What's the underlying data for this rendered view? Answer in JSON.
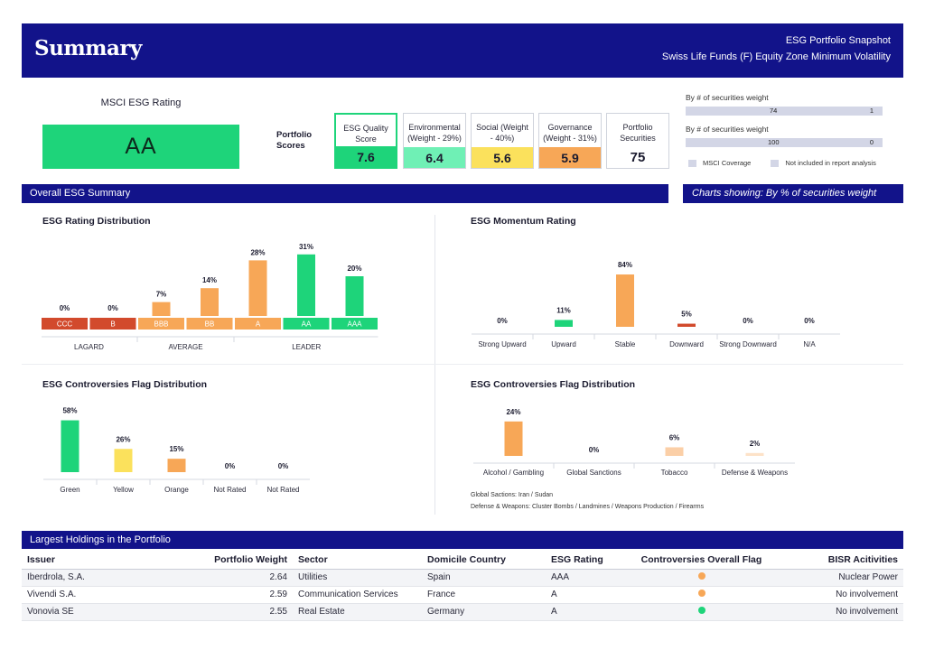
{
  "header": {
    "title": "Summary",
    "subtitle1": "ESG Portfolio Snapshot",
    "subtitle2": "Swiss Life Funds (F) Equity Zone Minimum Volatility"
  },
  "msci": {
    "label": "MSCI ESG Rating",
    "rating": "AA",
    "color": "#1ed47a"
  },
  "portfolio_scores": {
    "label_line1": "Portfolio",
    "label_line2": "Scores",
    "cards": [
      {
        "label_line1": "ESG Quality",
        "label_line2": "Score",
        "value": "7.6",
        "color": "#1ed47a"
      },
      {
        "label_line1": "Environmental",
        "label_line2": "(Weight - 29%)",
        "value": "6.4",
        "color": "#6ff0b5"
      },
      {
        "label_line1": "Social (Weight",
        "label_line2": "- 40%)",
        "value": "5.6",
        "color": "#fbe15c"
      },
      {
        "label_line1": "Governance",
        "label_line2": "(Weight - 31%)",
        "value": "5.9",
        "color": "#f7a757"
      },
      {
        "label_line1": "Portfolio",
        "label_line2": "Securities",
        "value": "75",
        "color": "#ffffff"
      }
    ]
  },
  "coverage": {
    "row1_label": "By # of securities weight",
    "row1_left": "74",
    "row1_right": "1",
    "row2_label": "By # of securities weight",
    "row2_left": "100",
    "row2_right": "0",
    "legend_covered": "MSCI Coverage",
    "legend_not_included": "Not included in report analysis"
  },
  "overall_section": {
    "title": "Overall ESG Summary",
    "charts_note": "Charts showing: By % of securities weight"
  },
  "chart_titles": {
    "rating_distribution": "ESG Rating Distribution",
    "momentum": "ESG Momentum Rating",
    "controversies_flag": "ESG Controversies Flag Distribution",
    "controversies_bisr": "ESG Controversies Flag Distribution"
  },
  "chart_data": [
    {
      "type": "bar",
      "title": "ESG Rating Distribution",
      "categories": [
        "CCC",
        "B",
        "BBB",
        "BB",
        "A",
        "AA",
        "AAA"
      ],
      "values": [
        0,
        0,
        7,
        14,
        28,
        31,
        20
      ],
      "labels": [
        "0%",
        "0%",
        "7%",
        "14%",
        "28%",
        "31%",
        "20%"
      ],
      "colors": [
        "#d24a2c",
        "#d24a2c",
        "#f7a757",
        "#f7a757",
        "#f7a757",
        "#1ed47a",
        "#1ed47a"
      ],
      "groups": [
        "LAGARD",
        "AVERAGE",
        "LEADER"
      ],
      "unit": "%"
    },
    {
      "type": "bar",
      "title": "ESG Momentum Rating",
      "categories": [
        "Strong Upward",
        "Upward",
        "Stable",
        "Downward",
        "Strong Downward",
        "N/A"
      ],
      "values": [
        0,
        11,
        84,
        5,
        0,
        0
      ],
      "labels": [
        "0%",
        "11%",
        "84%",
        "5%",
        "0%",
        "0%"
      ],
      "colors": [
        "#1ed47a",
        "#1ed47a",
        "#f7a757",
        "#d24a2c",
        "#d24a2c",
        "#cccccc"
      ],
      "unit": "%"
    },
    {
      "type": "bar",
      "title": "ESG Controversies Flag Distribution",
      "categories": [
        "Green",
        "Yellow",
        "Orange",
        "Not Rated",
        "Not Rated"
      ],
      "values": [
        58,
        26,
        15,
        0,
        0
      ],
      "labels": [
        "58%",
        "26%",
        "15%",
        "0%",
        "0%"
      ],
      "colors": [
        "#1ed47a",
        "#fbe15c",
        "#f7a757",
        "#cccccc",
        "#cccccc"
      ],
      "unit": "%"
    },
    {
      "type": "bar",
      "title": "ESG Controversies Flag Distribution",
      "categories": [
        "Alcohol / Gambling",
        "Global Sanctions",
        "Tobacco",
        "Defense & Weapons"
      ],
      "values": [
        24,
        0,
        6,
        2
      ],
      "labels": [
        "24%",
        "0%",
        "6%",
        "2%"
      ],
      "colors": [
        "#f7a757",
        "#f7a757",
        "#fbcfa7",
        "#fde2c8"
      ],
      "unit": "%"
    }
  ],
  "notes": {
    "line1": "Global Sactions: Iran / Sudan",
    "line2": "Defense & Weapons: Cluster Bombs / Landmines / Weapons Production / Firearms"
  },
  "holdings": {
    "title": "Largest Holdings in the Portfolio",
    "headers": [
      "Issuer",
      "Portfolio Weight",
      "Sector",
      "Domicile Country",
      "ESG Rating",
      "Controversies Overall Flag",
      "BISR Acitivities"
    ],
    "rows": [
      {
        "issuer": "Iberdrola, S.A.",
        "weight": "2.64",
        "sector": "Utilities",
        "country": "Spain",
        "rating": "AAA",
        "flag_color": "#f7a757",
        "bisr": "Nuclear Power"
      },
      {
        "issuer": "Vivendi S.A.",
        "weight": "2.59",
        "sector": "Communication Services",
        "country": "France",
        "rating": "A",
        "flag_color": "#f7a757",
        "bisr": "No involvement"
      },
      {
        "issuer": "Vonovia SE",
        "weight": "2.55",
        "sector": "Real Estate",
        "country": "Germany",
        "rating": "A",
        "flag_color": "#1ed47a",
        "bisr": "No involvement"
      }
    ]
  }
}
